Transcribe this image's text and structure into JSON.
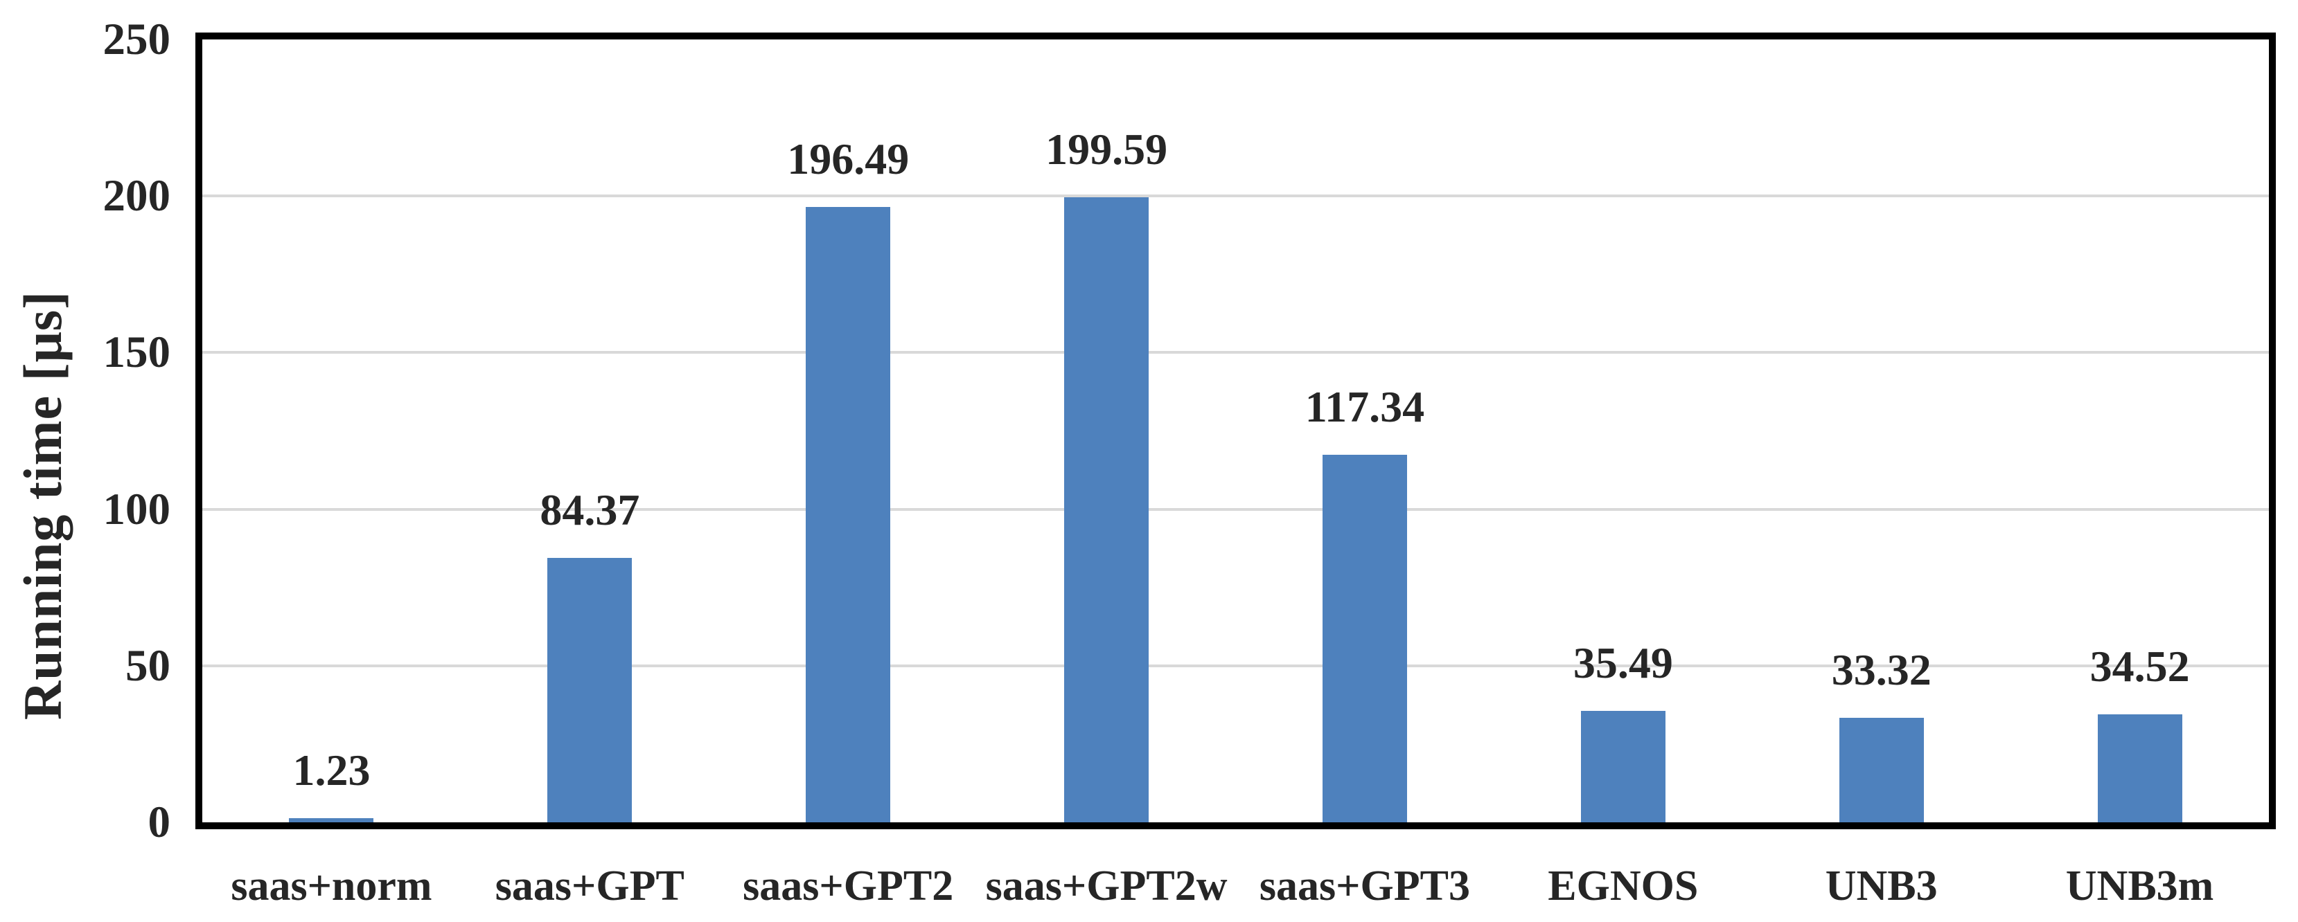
{
  "chart_data": {
    "type": "bar",
    "title": "",
    "xlabel": "",
    "ylabel": "Running time [μs]",
    "categories": [
      "saas+norm",
      "saas+GPT",
      "saas+GPT2",
      "saas+GPT2w",
      "saas+GPT3",
      "EGNOS",
      "UNB3",
      "UNB3m"
    ],
    "values": [
      1.23,
      84.37,
      196.49,
      199.59,
      117.34,
      35.49,
      33.32,
      34.52
    ],
    "value_labels": [
      "1.23",
      "84.37",
      "196.49",
      "199.59",
      "117.34",
      "35.49",
      "33.32",
      "34.52"
    ],
    "ylim": [
      0,
      250
    ],
    "yticks": [
      0,
      50,
      100,
      150,
      200,
      250
    ],
    "grid": "horizontal-major",
    "legend": "none",
    "colors": {
      "bar": "#4E81BD",
      "gridline": "#D9D9D9",
      "plot_border": "#000000",
      "text": "#262626"
    }
  }
}
